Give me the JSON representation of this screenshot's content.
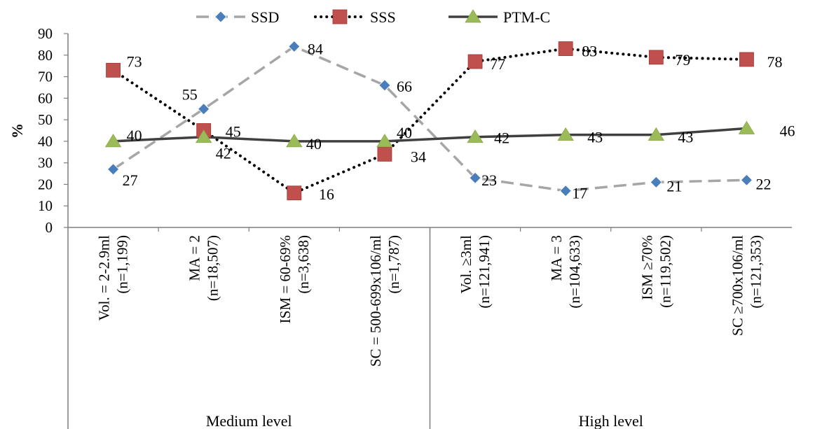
{
  "chart_data": {
    "type": "line",
    "title": "",
    "ylabel": "%",
    "ylim": [
      0,
      90
    ],
    "yticks": [
      0,
      10,
      20,
      30,
      40,
      50,
      60,
      70,
      80,
      90
    ],
    "grid": false,
    "legend_position": "top",
    "categories": [
      [
        "Vol. = 2-2.9ml",
        "(n=1,199)"
      ],
      [
        "MA = 2",
        "(n=18,507)"
      ],
      [
        "ISM = 60-69%",
        "(n=3,638)"
      ],
      [
        "SC = 500-699x106/ml",
        "(n=1,787)"
      ],
      [
        "Vol. ≥3ml",
        "(n=121,941)"
      ],
      [
        "MA = 3",
        "(n=104,633)"
      ],
      [
        "ISM ≥70%",
        "(n=119,502)"
      ],
      [
        "SC ≥700x106/ml",
        "(n=121,353)"
      ]
    ],
    "groups": [
      {
        "label": "Medium level",
        "count": 4
      },
      {
        "label": "High level",
        "count": 4
      }
    ],
    "series": [
      {
        "name": "SSD",
        "color": "#4a7ebb",
        "line_color": "#a6a6a6",
        "marker": "diamond",
        "line_style": "dashed",
        "values": [
          27,
          55,
          84,
          66,
          23,
          17,
          21,
          22
        ],
        "label_offsets": [
          [
            24,
            16
          ],
          [
            -20,
            -20
          ],
          [
            30,
            4
          ],
          [
            28,
            2
          ],
          [
            20,
            4
          ],
          [
            20,
            4
          ],
          [
            26,
            6
          ],
          [
            24,
            6
          ]
        ]
      },
      {
        "name": "SSS",
        "color": "#c0504d",
        "line_color": "#000000",
        "marker": "square",
        "line_style": "dotted",
        "values": [
          73,
          45,
          16,
          34,
          77,
          83,
          79,
          78
        ],
        "label_offsets": [
          [
            30,
            -12
          ],
          [
            42,
            2
          ],
          [
            46,
            2
          ],
          [
            48,
            4
          ],
          [
            32,
            4
          ],
          [
            34,
            4
          ],
          [
            38,
            4
          ],
          [
            40,
            4
          ]
        ]
      },
      {
        "name": "PTM-C",
        "color": "#9bbb59",
        "line_color": "#404040",
        "marker": "triangle",
        "line_style": "solid",
        "values": [
          40,
          42,
          40,
          40,
          42,
          43,
          43,
          46
        ],
        "label_offsets": [
          [
            30,
            -8
          ],
          [
            28,
            24
          ],
          [
            28,
            4
          ],
          [
            28,
            -12
          ],
          [
            38,
            2
          ],
          [
            42,
            4
          ],
          [
            42,
            4
          ],
          [
            58,
            4
          ]
        ]
      }
    ]
  }
}
